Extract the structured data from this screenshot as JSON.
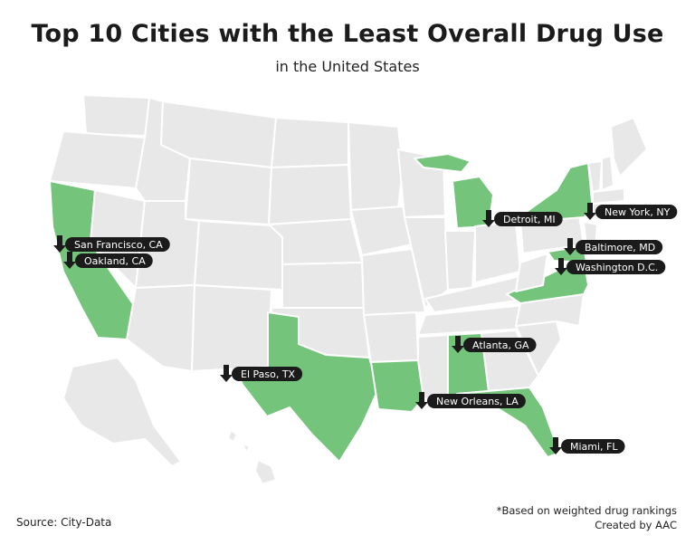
{
  "header": {
    "title": "Top 10 Cities with the Least Overall Drug Use",
    "subtitle": "in the United States"
  },
  "colors": {
    "highlight": "#74c47c",
    "base": "#e8e8e8",
    "label": "#1b1b1b"
  },
  "highlighted_states": [
    "CA",
    "TX",
    "LA",
    "AL",
    "FL",
    "MI",
    "NY",
    "VA",
    "MD"
  ],
  "cities": [
    {
      "name": "San Francisco, CA",
      "state": "CA"
    },
    {
      "name": "Oakland, CA",
      "state": "CA"
    },
    {
      "name": "El Paso, TX",
      "state": "TX"
    },
    {
      "name": "Detroit, MI",
      "state": "MI"
    },
    {
      "name": "New York, NY",
      "state": "NY"
    },
    {
      "name": "Baltimore, MD",
      "state": "MD"
    },
    {
      "name": "Washington D.C.",
      "state": "DC"
    },
    {
      "name": "Atlanta, GA",
      "state": "GA"
    },
    {
      "name": "New Orleans, LA",
      "state": "LA"
    },
    {
      "name": "Miami, FL",
      "state": "FL"
    }
  ],
  "footer": {
    "source": "Source: City-Data",
    "note": "*Based on weighted drug rankings",
    "credit": "Created by AAC"
  }
}
